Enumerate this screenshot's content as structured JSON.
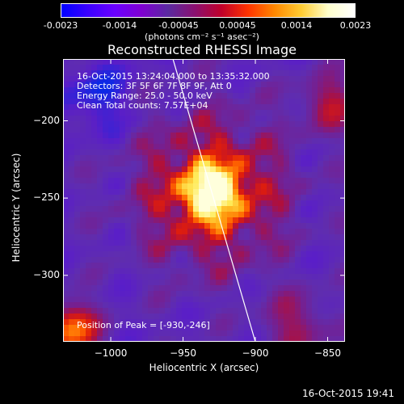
{
  "colorbar": {
    "colors": [
      "#0000ff",
      "#3a00ff",
      "#6a00ff",
      "#7f00d0",
      "#5a2aa0",
      "#8a1070",
      "#c0002a",
      "#ff3300",
      "#ff8800",
      "#ffcc33",
      "#ffffcc",
      "#ffffff"
    ],
    "ticks": [
      "-0.0023",
      "-0.0014",
      "-0.00045",
      "0.00045",
      "0.0014",
      "0.0023"
    ],
    "units_html": "(photons cm⁻² s⁻¹ asec⁻²)"
  },
  "title": "Reconstructed RHESSI Image",
  "info": {
    "line1": "16-Oct-2015 13:24:04.000 to 13:35:32.000",
    "line2": "Detectors: 3F 5F 6F 7F 8F 9F, Att 0",
    "line3": "Energy Range: 25.0 - 50.0 keV",
    "line4": "Clean     Total counts: 7.57E+04",
    "peak": "Position of Peak = [-930,-246]"
  },
  "chart_data": {
    "type": "heatmap",
    "title": "Reconstructed RHESSI Image",
    "xlabel": "Heliocentric X (arcsec)",
    "ylabel": "Heliocentric Y (arcsec)",
    "xlim": [
      -1033,
      -838
    ],
    "ylim": [
      -343,
      -160
    ],
    "xticks": [
      -1000,
      -950,
      -900,
      -850
    ],
    "yticks": [
      -200,
      -250,
      -300
    ],
    "peak": {
      "x": -930,
      "y": -246
    },
    "limb_line": {
      "x1": -957,
      "y1": -160,
      "x2": -900,
      "y2": -343
    }
  },
  "axes": {
    "xtick_labels": [
      "−1000",
      "−950",
      "−900",
      "−850"
    ],
    "ytick_labels": [
      "−200",
      "−250",
      "−300"
    ]
  },
  "timestamp": "16-Oct-2015 19:41"
}
